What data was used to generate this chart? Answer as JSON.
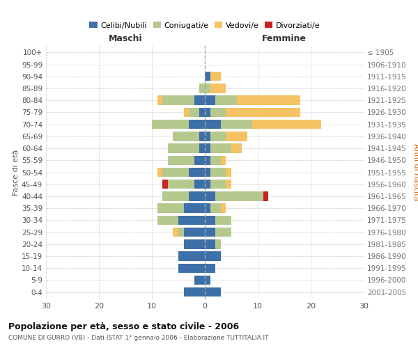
{
  "age_groups": [
    "0-4",
    "5-9",
    "10-14",
    "15-19",
    "20-24",
    "25-29",
    "30-34",
    "35-39",
    "40-44",
    "45-49",
    "50-54",
    "55-59",
    "60-64",
    "65-69",
    "70-74",
    "75-79",
    "80-84",
    "85-89",
    "90-94",
    "95-99",
    "100+"
  ],
  "birth_years": [
    "2001-2005",
    "1996-2000",
    "1991-1995",
    "1986-1990",
    "1981-1985",
    "1976-1980",
    "1971-1975",
    "1966-1970",
    "1961-1965",
    "1956-1960",
    "1951-1955",
    "1946-1950",
    "1941-1945",
    "1936-1940",
    "1931-1935",
    "1926-1930",
    "1921-1925",
    "1916-1920",
    "1911-1915",
    "1906-1910",
    "≤ 1905"
  ],
  "males": {
    "celibi": [
      4,
      2,
      5,
      5,
      4,
      4,
      5,
      4,
      3,
      2,
      3,
      2,
      1,
      1,
      3,
      1,
      2,
      0,
      0,
      0,
      0
    ],
    "coniugati": [
      0,
      0,
      0,
      0,
      0,
      1,
      4,
      5,
      5,
      5,
      5,
      5,
      6,
      5,
      7,
      2,
      6,
      1,
      0,
      0,
      0
    ],
    "vedovi": [
      0,
      0,
      0,
      0,
      0,
      1,
      0,
      0,
      0,
      0,
      1,
      0,
      0,
      0,
      0,
      1,
      1,
      0,
      0,
      0,
      0
    ],
    "divorziati": [
      0,
      0,
      0,
      0,
      0,
      0,
      0,
      0,
      0,
      1,
      0,
      0,
      0,
      0,
      0,
      0,
      0,
      0,
      0,
      0,
      0
    ]
  },
  "females": {
    "nubili": [
      3,
      1,
      2,
      3,
      2,
      2,
      2,
      1,
      2,
      1,
      1,
      1,
      1,
      1,
      3,
      1,
      2,
      0,
      1,
      0,
      0
    ],
    "coniugate": [
      0,
      0,
      0,
      0,
      1,
      3,
      3,
      2,
      9,
      3,
      3,
      2,
      4,
      3,
      6,
      3,
      4,
      1,
      0,
      0,
      0
    ],
    "vedove": [
      0,
      0,
      0,
      0,
      0,
      0,
      0,
      1,
      0,
      1,
      1,
      1,
      2,
      4,
      13,
      14,
      12,
      3,
      2,
      0,
      0
    ],
    "divorziate": [
      0,
      0,
      0,
      0,
      0,
      0,
      0,
      0,
      1,
      0,
      0,
      0,
      0,
      0,
      0,
      0,
      0,
      0,
      0,
      0,
      0
    ]
  },
  "colors": {
    "celibi_nubili": "#3d6fa8",
    "coniugati": "#b5c98e",
    "vedovi": "#f5c264",
    "divorziati": "#cc2222"
  },
  "title": "Popolazione per età, sesso e stato civile - 2006",
  "subtitle": "COMUNE DI GURRO (VB) - Dati ISTAT 1° gennaio 2006 - Elaborazione TUTTITALIA.IT",
  "xlabel_left": "Maschi",
  "xlabel_right": "Femmine",
  "ylabel_left": "Fasce di età",
  "ylabel_right": "Anni di nascita",
  "xlim": 30,
  "bg_color": "#ffffff",
  "grid_color": "#cccccc"
}
